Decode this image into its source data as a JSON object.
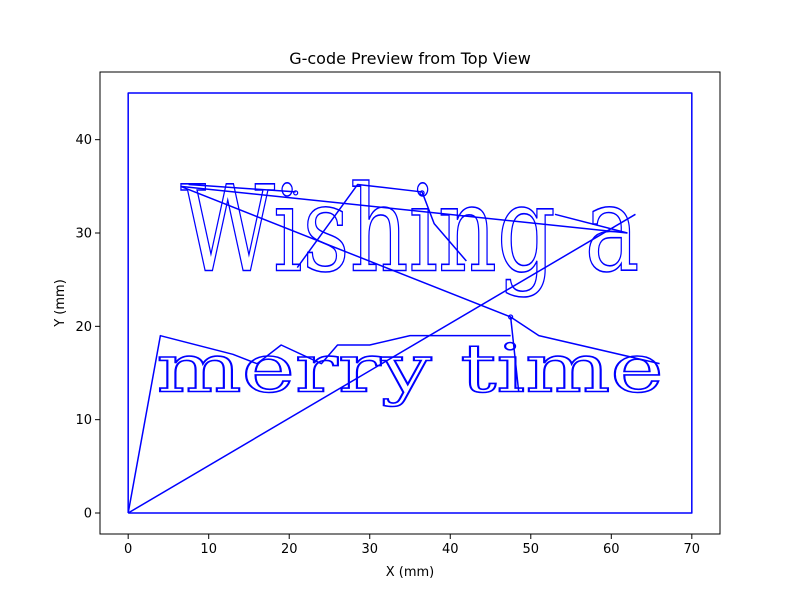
{
  "chart_data": {
    "type": "line",
    "title": "G-code Preview from Top View",
    "xlabel": "X (mm)",
    "ylabel": "Y (mm)",
    "xlim": [
      -3.5,
      73.5
    ],
    "ylim": [
      -2.25,
      47.25
    ],
    "xticks": [
      0,
      10,
      20,
      30,
      40,
      50,
      60,
      70
    ],
    "yticks": [
      0,
      10,
      20,
      30,
      40
    ],
    "grid": false,
    "line_color": "#0000ff",
    "overlay_text": [
      {
        "text": "Wishing a",
        "x_start": 6.5,
        "x_end": 63.5,
        "baseline_y": 26,
        "cap_height": 9.3
      },
      {
        "text": "merry time",
        "x_start": 3.5,
        "x_end": 66.5,
        "baseline_y": 13,
        "cap_height": 5.2
      }
    ],
    "series": [
      {
        "points": [
          [
            0,
            0
          ],
          [
            70,
            0
          ],
          [
            70,
            45
          ],
          [
            0,
            45
          ],
          [
            0,
            0
          ]
        ]
      },
      {
        "points": [
          [
            0,
            0
          ],
          [
            4,
            19
          ],
          [
            13,
            17
          ],
          [
            16,
            16
          ],
          [
            19,
            18
          ],
          [
            24,
            16
          ],
          [
            26,
            18
          ],
          [
            30,
            18
          ],
          [
            35,
            19
          ],
          [
            44,
            19
          ],
          [
            47.5,
            19
          ]
        ]
      },
      {
        "points": [
          [
            0,
            0
          ],
          [
            63,
            32
          ]
        ]
      },
      {
        "points": [
          [
            6.5,
            35
          ],
          [
            47.5,
            21
          ],
          [
            51,
            19
          ],
          [
            66,
            16
          ]
        ]
      },
      {
        "points": [
          [
            6.5,
            35
          ],
          [
            62,
            30
          ]
        ]
      },
      {
        "points": [
          [
            7.5,
            35.2
          ],
          [
            20.8,
            34.4
          ]
        ]
      },
      {
        "points": [
          [
            21,
            26.3
          ],
          [
            28.5,
            35.2
          ],
          [
            36.5,
            34.4
          ]
        ]
      },
      {
        "points": [
          [
            36.5,
            34.4
          ],
          [
            38,
            31
          ],
          [
            42,
            27
          ]
        ]
      },
      {
        "points": [
          [
            53,
            32
          ],
          [
            62,
            30
          ]
        ]
      },
      {
        "points": [
          [
            47.5,
            21
          ],
          [
            48.5,
            13
          ]
        ]
      }
    ],
    "dots": [
      [
        20.8,
        34.3
      ],
      [
        36.5,
        34.3
      ],
      [
        47.5,
        21
      ]
    ]
  }
}
